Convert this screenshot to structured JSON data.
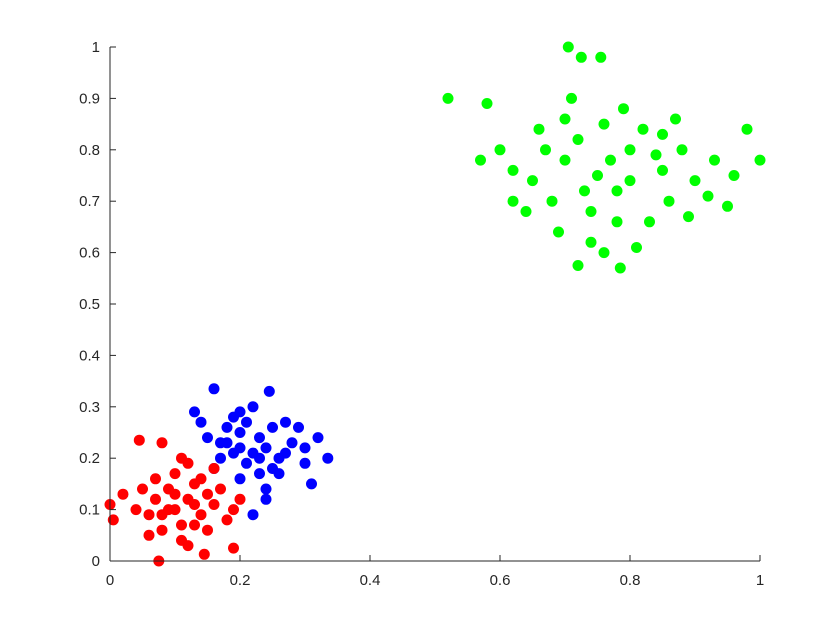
{
  "chart_data": {
    "type": "scatter",
    "title": "",
    "xlabel": "",
    "ylabel": "",
    "xlim": [
      0,
      1
    ],
    "ylim": [
      0,
      1
    ],
    "grid": false,
    "legend": "none",
    "x_ticks": [
      "0",
      "0.2",
      "0.4",
      "0.6",
      "0.8",
      "1"
    ],
    "y_ticks": [
      "0",
      "0.1",
      "0.2",
      "0.3",
      "0.4",
      "0.5",
      "0.6",
      "0.7",
      "0.8",
      "0.9",
      "1"
    ],
    "series": [
      {
        "color": "#0000ff",
        "points": [
          [
            0.16,
            0.335
          ],
          [
            0.245,
            0.33
          ],
          [
            0.13,
            0.29
          ],
          [
            0.335,
            0.2
          ],
          [
            0.32,
            0.24
          ],
          [
            0.31,
            0.15
          ],
          [
            0.2,
            0.25
          ],
          [
            0.22,
            0.21
          ],
          [
            0.18,
            0.23
          ],
          [
            0.24,
            0.22
          ],
          [
            0.21,
            0.19
          ],
          [
            0.25,
            0.26
          ],
          [
            0.19,
            0.28
          ],
          [
            0.23,
            0.17
          ],
          [
            0.26,
            0.2
          ],
          [
            0.17,
            0.2
          ],
          [
            0.28,
            0.23
          ],
          [
            0.2,
            0.16
          ],
          [
            0.15,
            0.24
          ],
          [
            0.27,
            0.27
          ],
          [
            0.22,
            0.3
          ],
          [
            0.3,
            0.19
          ],
          [
            0.24,
            0.14
          ],
          [
            0.16,
            0.18
          ],
          [
            0.2,
            0.22
          ],
          [
            0.23,
            0.24
          ],
          [
            0.21,
            0.27
          ],
          [
            0.19,
            0.21
          ],
          [
            0.25,
            0.18
          ],
          [
            0.29,
            0.26
          ],
          [
            0.18,
            0.26
          ],
          [
            0.27,
            0.21
          ],
          [
            0.22,
            0.09
          ],
          [
            0.24,
            0.12
          ],
          [
            0.14,
            0.27
          ],
          [
            0.3,
            0.22
          ],
          [
            0.26,
            0.17
          ],
          [
            0.2,
            0.29
          ],
          [
            0.17,
            0.23
          ],
          [
            0.23,
            0.2
          ]
        ]
      },
      {
        "color": "#ff0000",
        "points": [
          [
            0.045,
            0.235
          ],
          [
            0.075,
            0.0
          ],
          [
            0.145,
            0.013
          ],
          [
            0.19,
            0.025
          ],
          [
            0.0,
            0.11
          ],
          [
            0.005,
            0.08
          ],
          [
            0.08,
            0.23
          ],
          [
            0.1,
            0.1
          ],
          [
            0.12,
            0.12
          ],
          [
            0.09,
            0.14
          ],
          [
            0.14,
            0.09
          ],
          [
            0.11,
            0.07
          ],
          [
            0.07,
            0.12
          ],
          [
            0.13,
            0.15
          ],
          [
            0.1,
            0.17
          ],
          [
            0.16,
            0.11
          ],
          [
            0.06,
            0.09
          ],
          [
            0.08,
            0.06
          ],
          [
            0.15,
            0.06
          ],
          [
            0.12,
            0.19
          ],
          [
            0.17,
            0.14
          ],
          [
            0.05,
            0.14
          ],
          [
            0.11,
            0.04
          ],
          [
            0.09,
            0.1
          ],
          [
            0.13,
            0.11
          ],
          [
            0.02,
            0.13
          ],
          [
            0.18,
            0.08
          ],
          [
            0.1,
            0.13
          ],
          [
            0.14,
            0.16
          ],
          [
            0.07,
            0.16
          ],
          [
            0.12,
            0.03
          ],
          [
            0.2,
            0.12
          ],
          [
            0.04,
            0.1
          ],
          [
            0.16,
            0.18
          ],
          [
            0.08,
            0.09
          ],
          [
            0.11,
            0.2
          ],
          [
            0.13,
            0.07
          ],
          [
            0.06,
            0.05
          ],
          [
            0.15,
            0.13
          ],
          [
            0.19,
            0.1
          ]
        ]
      },
      {
        "color": "#00ff00",
        "points": [
          [
            0.705,
            1.0
          ],
          [
            0.725,
            0.98
          ],
          [
            0.755,
            0.98
          ],
          [
            0.52,
            0.9
          ],
          [
            0.58,
            0.89
          ],
          [
            0.57,
            0.78
          ],
          [
            1.0,
            0.78
          ],
          [
            0.98,
            0.84
          ],
          [
            0.95,
            0.69
          ],
          [
            0.72,
            0.575
          ],
          [
            0.785,
            0.57
          ],
          [
            0.76,
            0.6
          ],
          [
            0.75,
            0.75
          ],
          [
            0.8,
            0.8
          ],
          [
            0.7,
            0.78
          ],
          [
            0.78,
            0.72
          ],
          [
            0.85,
            0.76
          ],
          [
            0.72,
            0.82
          ],
          [
            0.82,
            0.84
          ],
          [
            0.68,
            0.7
          ],
          [
            0.88,
            0.8
          ],
          [
            0.74,
            0.68
          ],
          [
            0.66,
            0.84
          ],
          [
            0.79,
            0.88
          ],
          [
            0.9,
            0.74
          ],
          [
            0.62,
            0.76
          ],
          [
            0.83,
            0.66
          ],
          [
            0.71,
            0.9
          ],
          [
            0.86,
            0.7
          ],
          [
            0.64,
            0.68
          ],
          [
            0.77,
            0.78
          ],
          [
            0.93,
            0.78
          ],
          [
            0.69,
            0.64
          ],
          [
            0.81,
            0.61
          ],
          [
            0.6,
            0.8
          ],
          [
            0.73,
            0.72
          ],
          [
            0.87,
            0.86
          ],
          [
            0.65,
            0.74
          ],
          [
            0.84,
            0.79
          ],
          [
            0.76,
            0.85
          ],
          [
            0.92,
            0.71
          ],
          [
            0.67,
            0.8
          ],
          [
            0.8,
            0.74
          ],
          [
            0.7,
            0.86
          ],
          [
            0.89,
            0.67
          ],
          [
            0.74,
            0.62
          ],
          [
            0.96,
            0.75
          ],
          [
            0.62,
            0.7
          ],
          [
            0.78,
            0.66
          ],
          [
            0.85,
            0.83
          ]
        ]
      }
    ]
  }
}
